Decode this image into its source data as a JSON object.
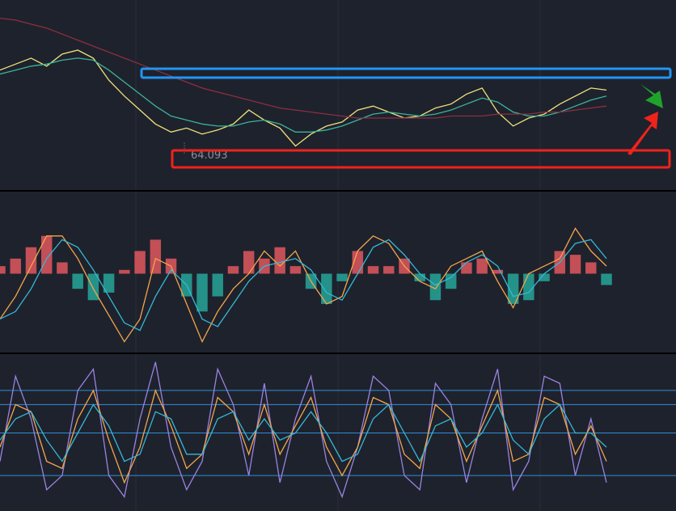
{
  "chart_data": [
    {
      "type": "line",
      "ylim": [
        62.5,
        71
      ],
      "low": 64.093,
      "low_color": "#8a8f9c",
      "series": [
        {
          "color": "#f0e27a",
          "values": [
            68.3,
            68.6,
            68.9,
            68.5,
            69.1,
            69.3,
            68.9,
            67.8,
            67.0,
            66.3,
            65.6,
            65.2,
            65.4,
            65.1,
            65.3,
            65.6,
            66.3,
            65.8,
            65.4,
            64.5,
            65.1,
            65.5,
            65.7,
            66.3,
            66.5,
            66.2,
            65.9,
            66.0,
            66.4,
            66.6,
            67.1,
            67.4,
            66.2,
            65.5,
            65.9,
            66.1,
            66.6,
            67.0,
            67.4,
            67.3
          ]
        },
        {
          "color": "#3bb39a",
          "values": [
            68.1,
            68.3,
            68.5,
            68.6,
            68.8,
            68.9,
            68.8,
            68.3,
            67.7,
            67.1,
            66.5,
            66.0,
            65.8,
            65.6,
            65.5,
            65.5,
            65.7,
            65.8,
            65.6,
            65.2,
            65.2,
            65.3,
            65.5,
            65.8,
            66.1,
            66.2,
            66.1,
            66.0,
            66.1,
            66.3,
            66.6,
            66.9,
            66.7,
            66.2,
            66.0,
            66.0,
            66.2,
            66.5,
            66.8,
            67.0
          ]
        },
        {
          "color": "#8c2f3f",
          "values": [
            70.9,
            70.8,
            70.6,
            70.4,
            70.1,
            69.8,
            69.5,
            69.2,
            68.9,
            68.6,
            68.3,
            68.0,
            67.7,
            67.4,
            67.2,
            67.0,
            66.8,
            66.6,
            66.4,
            66.3,
            66.2,
            66.1,
            66.0,
            65.9,
            65.9,
            65.9,
            65.9,
            65.9,
            65.9,
            66.0,
            66.0,
            66.0,
            66.1,
            66.1,
            66.1,
            66.2,
            66.2,
            66.3,
            66.4,
            66.5
          ]
        }
      ]
    },
    {
      "type": "bar",
      "ylim": [
        -1,
        1
      ],
      "up_color": "#e0575f",
      "down_color": "#26a69a",
      "values": [
        0.1,
        0.2,
        0.35,
        0.5,
        0.15,
        -0.2,
        -0.35,
        -0.25,
        0.05,
        0.3,
        0.45,
        0.2,
        -0.3,
        -0.5,
        -0.3,
        0.1,
        0.3,
        0.2,
        0.35,
        0.1,
        -0.2,
        -0.4,
        -0.1,
        0.3,
        0.1,
        0.1,
        0.2,
        -0.1,
        -0.35,
        -0.2,
        0.15,
        0.2,
        0.05,
        -0.4,
        -0.35,
        -0.1,
        0.3,
        0.25,
        0.15,
        -0.15
      ],
      "series": [
        {
          "color": "#f5a54a",
          "values": [
            -0.6,
            -0.3,
            0.1,
            0.5,
            0.5,
            0.2,
            -0.2,
            -0.55,
            -0.9,
            -0.6,
            0.2,
            0.1,
            -0.4,
            -0.9,
            -0.5,
            -0.2,
            0.0,
            0.3,
            0.1,
            0.3,
            -0.1,
            -0.4,
            -0.3,
            0.3,
            0.5,
            0.4,
            0.1,
            -0.1,
            -0.2,
            0.1,
            0.2,
            0.3,
            -0.1,
            -0.45,
            0.0,
            0.1,
            0.2,
            0.6,
            0.3,
            0.1
          ]
        },
        {
          "color": "#35b8d6",
          "values": [
            -0.6,
            -0.5,
            -0.2,
            0.2,
            0.45,
            0.35,
            0.05,
            -0.3,
            -0.65,
            -0.75,
            -0.3,
            0.05,
            -0.15,
            -0.6,
            -0.7,
            -0.4,
            -0.1,
            0.1,
            0.15,
            0.2,
            0.05,
            -0.25,
            -0.35,
            0.0,
            0.35,
            0.45,
            0.25,
            0.0,
            -0.15,
            -0.05,
            0.15,
            0.25,
            0.1,
            -0.3,
            -0.25,
            0.0,
            0.15,
            0.4,
            0.45,
            0.2
          ]
        }
      ]
    },
    {
      "type": "line",
      "ylim": [
        -5,
        105
      ],
      "levels": [
        80,
        70,
        50,
        20
      ],
      "level_color": "#2f8fd8",
      "series": [
        {
          "color": "#9a83e0",
          "values": [
            30,
            90,
            60,
            10,
            20,
            80,
            95,
            20,
            5,
            60,
            100,
            40,
            10,
            30,
            95,
            70,
            20,
            85,
            15,
            60,
            90,
            30,
            5,
            40,
            90,
            80,
            20,
            10,
            85,
            70,
            15,
            60,
            95,
            10,
            30,
            90,
            85,
            20,
            60,
            15
          ]
        },
        {
          "color": "#f5a54a",
          "values": [
            40,
            70,
            65,
            30,
            25,
            60,
            80,
            45,
            15,
            40,
            80,
            55,
            25,
            35,
            75,
            65,
            35,
            70,
            35,
            55,
            75,
            40,
            20,
            40,
            75,
            70,
            35,
            25,
            70,
            60,
            30,
            55,
            80,
            30,
            35,
            75,
            70,
            35,
            55,
            30
          ]
        },
        {
          "color": "#35b8d6",
          "values": [
            45,
            60,
            65,
            45,
            30,
            50,
            70,
            55,
            30,
            35,
            65,
            60,
            35,
            35,
            60,
            65,
            45,
            60,
            45,
            50,
            65,
            50,
            30,
            35,
            60,
            70,
            50,
            30,
            55,
            60,
            40,
            50,
            70,
            45,
            35,
            60,
            70,
            50,
            50,
            40
          ]
        }
      ]
    }
  ]
}
